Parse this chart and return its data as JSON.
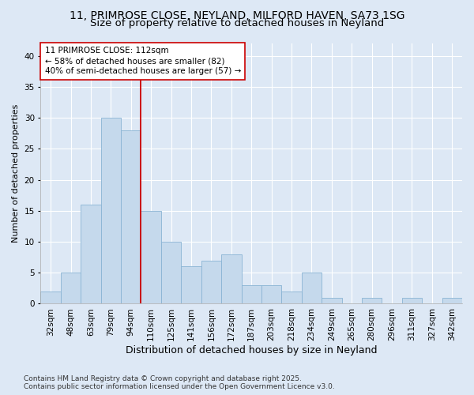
{
  "title1": "11, PRIMROSE CLOSE, NEYLAND, MILFORD HAVEN, SA73 1SG",
  "title2": "Size of property relative to detached houses in Neyland",
  "xlabel": "Distribution of detached houses by size in Neyland",
  "ylabel": "Number of detached properties",
  "categories": [
    "32sqm",
    "48sqm",
    "63sqm",
    "79sqm",
    "94sqm",
    "110sqm",
    "125sqm",
    "141sqm",
    "156sqm",
    "172sqm",
    "187sqm",
    "203sqm",
    "218sqm",
    "234sqm",
    "249sqm",
    "265sqm",
    "280sqm",
    "296sqm",
    "311sqm",
    "327sqm",
    "342sqm"
  ],
  "values": [
    2,
    5,
    16,
    30,
    28,
    15,
    10,
    6,
    7,
    8,
    3,
    3,
    2,
    5,
    1,
    0,
    1,
    0,
    1,
    0,
    1
  ],
  "bar_color": "#c5d9ec",
  "bar_edge_color": "#8ab4d4",
  "vline_color": "#cc0000",
  "annotation_text": "11 PRIMROSE CLOSE: 112sqm\n← 58% of detached houses are smaller (82)\n40% of semi-detached houses are larger (57) →",
  "annotation_box_color": "#ffffff",
  "annotation_box_edge": "#cc0000",
  "ylim": [
    0,
    42
  ],
  "yticks": [
    0,
    5,
    10,
    15,
    20,
    25,
    30,
    35,
    40
  ],
  "background_color": "#dde8f5",
  "plot_bg_color": "#dde8f5",
  "grid_color": "#ffffff",
  "footer": "Contains HM Land Registry data © Crown copyright and database right 2025.\nContains public sector information licensed under the Open Government Licence v3.0.",
  "title_fontsize": 10,
  "subtitle_fontsize": 9.5,
  "xlabel_fontsize": 9,
  "ylabel_fontsize": 8,
  "tick_fontsize": 7.5,
  "annotation_fontsize": 7.5,
  "footer_fontsize": 6.5
}
